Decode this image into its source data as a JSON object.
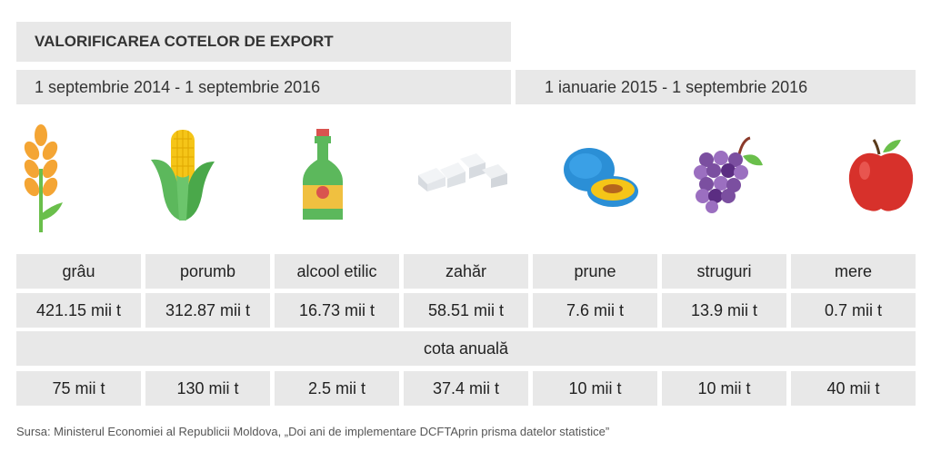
{
  "header": {
    "title": "VALORIFICAREA COTELOR DE EXPORT",
    "period_left": "1 septembrie 2014 - 1 septembrie 2016",
    "period_right": "1 ianuarie 2015 - 1 septembrie 2016"
  },
  "icons": [
    "wheat-icon",
    "corn-icon",
    "bottle-icon",
    "sugar-icon",
    "plum-icon",
    "grapes-icon",
    "apple-icon"
  ],
  "chart_data": {
    "type": "table",
    "title": "VALORIFICAREA COTELOR DE EXPORT",
    "categories": [
      "grâu",
      "porumb",
      "alcool etilic",
      "zahăr",
      "prune",
      "struguri",
      "mere"
    ],
    "exported_labels": [
      "421.15 mii t",
      "312.87 mii t",
      "16.73 mii t",
      "58.51 mii t",
      "7.6 mii t",
      "13.9 mii t",
      "0.7 mii t"
    ],
    "quota_header": "cota anuală",
    "quota_labels": [
      "75 mii t",
      "130 mii t",
      "2.5 mii t",
      "37.4 mii t",
      "10 mii t",
      "10 mii t",
      "40 mii t"
    ],
    "series": [
      {
        "values": [
          421.15,
          312.87,
          16.73,
          58.51,
          7.6,
          13.9,
          0.7
        ]
      },
      {
        "name": "cota anuală",
        "values": [
          75,
          130,
          2.5,
          37.4,
          10,
          10,
          40
        ]
      }
    ]
  },
  "footer": {
    "source": "Sursa: Ministerul Economiei al Republicii Moldova, „Doi ani de implementare DCFTAprin prisma datelor statistice”"
  }
}
